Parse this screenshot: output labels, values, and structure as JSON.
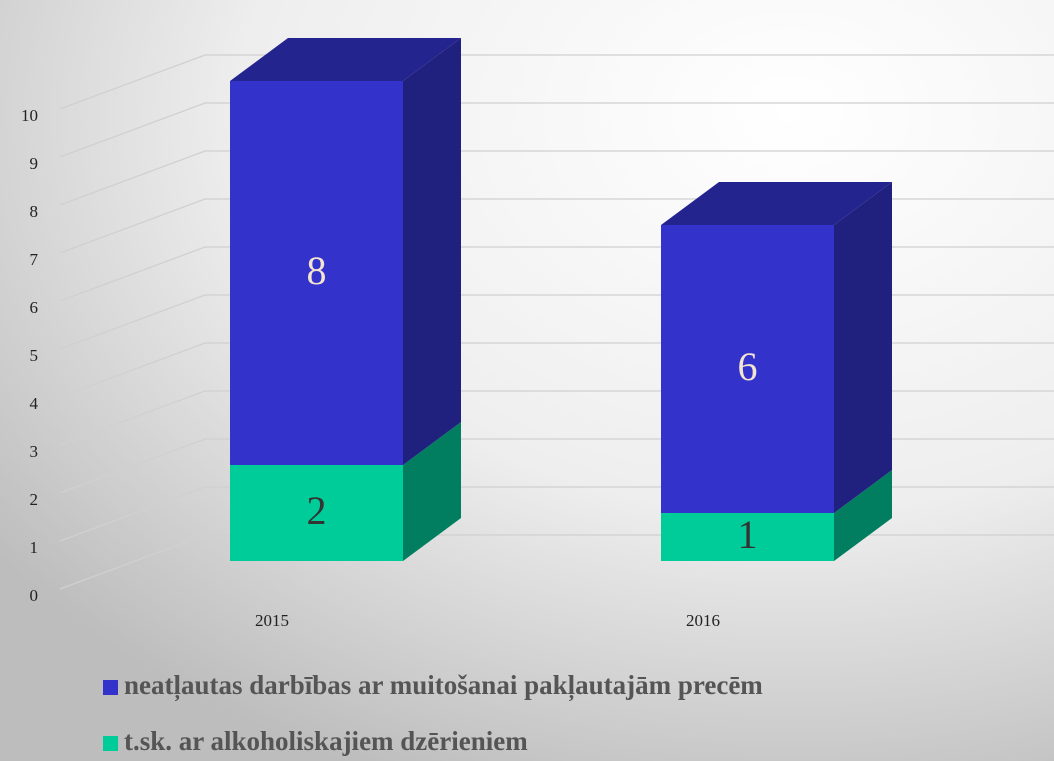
{
  "chart_data": {
    "type": "bar3d_stacked",
    "categories": [
      "2015",
      "2016"
    ],
    "series": [
      {
        "name": "neatļautas darbības ar muitošanai pakļautajām precēm",
        "color": "#3333cc",
        "values": [
          8,
          6
        ]
      },
      {
        "name": "t.sk. ar alkoholiskajiem dzērieniem",
        "color": "#00cc99",
        "values": [
          2,
          1
        ]
      }
    ],
    "ylim": [
      0,
      10
    ],
    "yticks": [
      0,
      1,
      2,
      3,
      4,
      5,
      6,
      7,
      8,
      9,
      10
    ],
    "grid": true
  }
}
